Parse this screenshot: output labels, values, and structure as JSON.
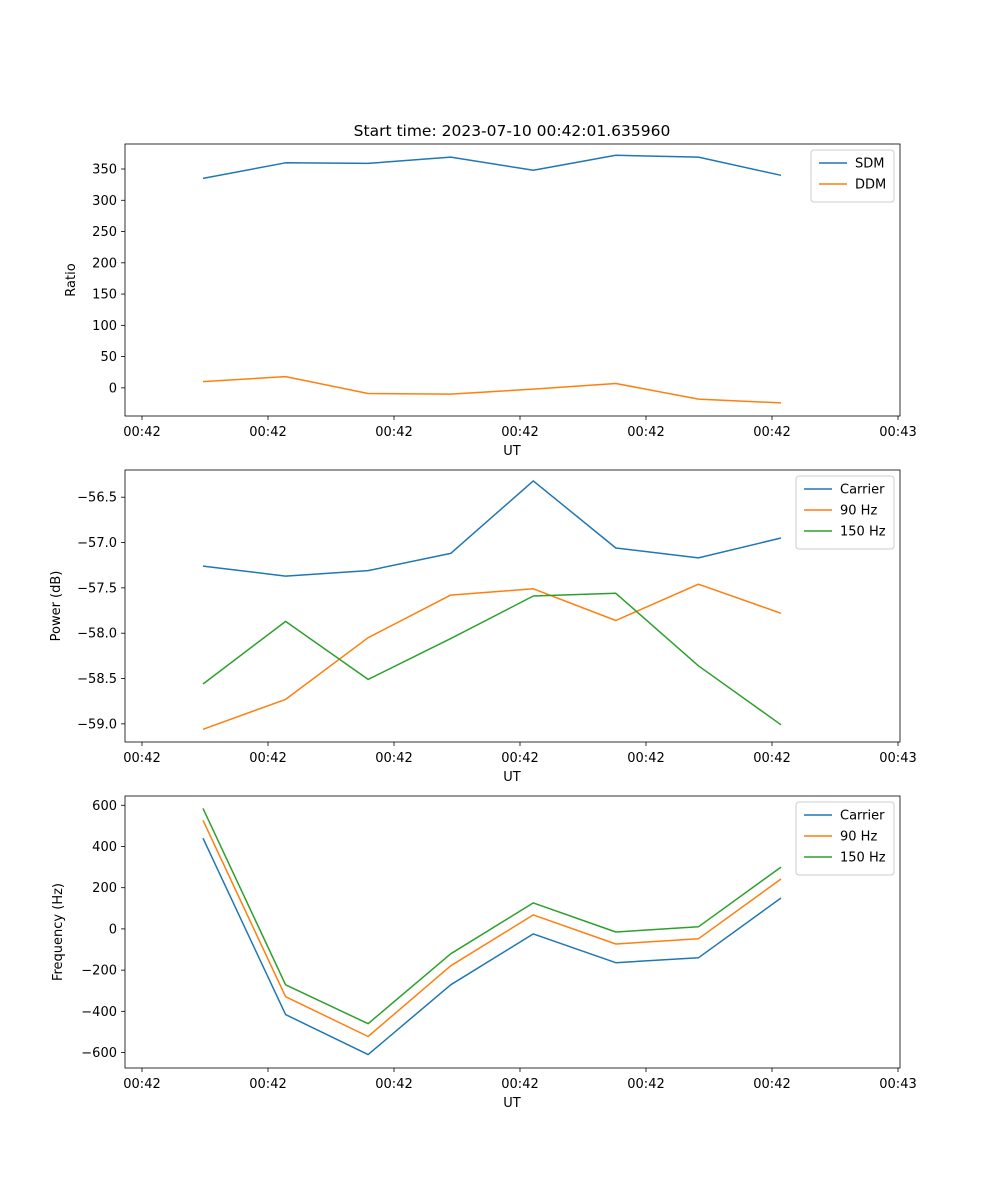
{
  "figure_title": "Start time: 2023-07-10 00:42:01.635960",
  "chart_data": [
    {
      "type": "line",
      "title": "Start time: 2023-07-10 00:42:01.635960",
      "xlabel": "UT",
      "ylabel": "Ratio",
      "x_tick_labels": [
        "00:42",
        "00:42",
        "00:42",
        "00:42",
        "00:42",
        "00:42",
        "00:43"
      ],
      "y_ticks": [
        0,
        50,
        100,
        150,
        200,
        250,
        300,
        350
      ],
      "ylim": [
        -45,
        390
      ],
      "x_index": [
        0,
        1,
        2,
        3,
        4,
        5,
        6,
        7
      ],
      "legend_placement": "top-right",
      "grid": false,
      "series": [
        {
          "name": "SDM",
          "color": "#1f77b4",
          "values": [
            335,
            360,
            359,
            369,
            348,
            372,
            369,
            340
          ]
        },
        {
          "name": "DDM",
          "color": "#ff7f0e",
          "values": [
            10,
            18,
            -9,
            -10,
            -2,
            7,
            -18,
            -24
          ]
        }
      ]
    },
    {
      "type": "line",
      "title": "",
      "xlabel": "UT",
      "ylabel": "Power (dB)",
      "x_tick_labels": [
        "00:42",
        "00:42",
        "00:42",
        "00:42",
        "00:42",
        "00:42",
        "00:43"
      ],
      "y_ticks": [
        -59.0,
        -58.5,
        -58.0,
        -57.5,
        -57.0,
        -56.5
      ],
      "y_tick_labels": [
        "−59.0",
        "−58.5",
        "−58.0",
        "−57.5",
        "−57.0",
        "−56.5"
      ],
      "ylim": [
        -59.2,
        -56.2
      ],
      "x_index": [
        0,
        1,
        2,
        3,
        4,
        5,
        6,
        7
      ],
      "legend_placement": "top-right",
      "grid": false,
      "series": [
        {
          "name": "Carrier",
          "color": "#1f77b4",
          "values": [
            -57.26,
            -57.37,
            -57.31,
            -57.12,
            -56.32,
            -57.06,
            -57.17,
            -56.95
          ]
        },
        {
          "name": "90 Hz",
          "color": "#ff7f0e",
          "values": [
            -59.06,
            -58.73,
            -58.05,
            -57.58,
            -57.51,
            -57.86,
            -57.46,
            -57.78
          ]
        },
        {
          "name": "150 Hz",
          "color": "#2ca02c",
          "values": [
            -58.56,
            -57.87,
            -58.51,
            -58.06,
            -57.59,
            -57.56,
            -58.36,
            -59.01
          ]
        }
      ]
    },
    {
      "type": "line",
      "title": "",
      "xlabel": "UT",
      "ylabel": "Frequency (Hz)",
      "x_tick_labels": [
        "00:42",
        "00:42",
        "00:42",
        "00:42",
        "00:42",
        "00:42",
        "00:43"
      ],
      "y_ticks": [
        -600,
        -400,
        -200,
        0,
        200,
        400,
        600
      ],
      "y_tick_labels": [
        "−600",
        "−400",
        "−200",
        "0",
        "200",
        "400",
        "600"
      ],
      "ylim": [
        -675,
        645
      ],
      "x_index": [
        0,
        1,
        2,
        3,
        4,
        5,
        6,
        7
      ],
      "legend_placement": "top-right",
      "grid": false,
      "series": [
        {
          "name": "Carrier",
          "color": "#1f77b4",
          "values": [
            440,
            -416,
            -610,
            -271,
            -24,
            -164,
            -140,
            150
          ]
        },
        {
          "name": "90 Hz",
          "color": "#ff7f0e",
          "values": [
            527,
            -329,
            -522,
            -179,
            68,
            -73,
            -48,
            242
          ]
        },
        {
          "name": "150 Hz",
          "color": "#2ca02c",
          "values": [
            585,
            -271,
            -460,
            -121,
            126,
            -15,
            10,
            300
          ]
        }
      ]
    }
  ]
}
